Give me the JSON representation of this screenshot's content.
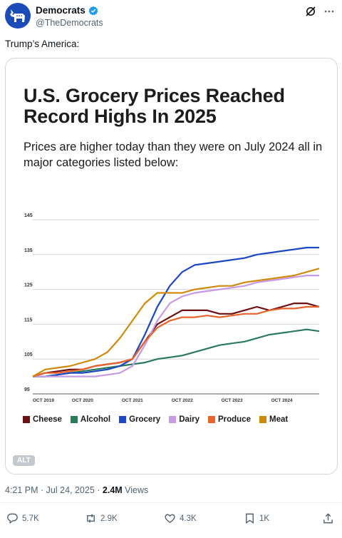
{
  "post": {
    "display_name": "Democrats",
    "handle": "@TheDemocrats",
    "text": "Trump’s America:",
    "timestamp": "4:21 PM · Jul 24, 2025 · ",
    "views_count": "2.4M",
    "views_label": " Views",
    "alt_label": "ALT"
  },
  "actions": {
    "replies": "5.7K",
    "reposts": "2.9K",
    "likes": "4.3K",
    "bookmarks": "1K"
  },
  "icons": [
    "donkey-logo-icon",
    "verified-badge-icon",
    "grok-icon",
    "more-icon",
    "reply-icon",
    "repost-icon",
    "like-icon",
    "bookmark-icon",
    "share-icon"
  ],
  "colors": {
    "brand": "#1a4bb8",
    "verified": "#1d9bf0",
    "muted": "#536471"
  },
  "chart_data": {
    "type": "line",
    "title": "U.S. Grocery Prices Reached Record Highs In 2025",
    "subtitle": "Prices are higher today than they were on July 2024 all in major categories listed below:",
    "x_ticks": [
      "OCT 2019",
      "OCT 2020",
      "OCT 2021",
      "OCT 2022",
      "OCT 2023",
      "OCT 2024"
    ],
    "y_ticks": [
      95,
      105,
      115,
      125,
      135,
      145
    ],
    "ylim": [
      95,
      145
    ],
    "xlim": [
      2019.75,
      2025.5
    ],
    "grid": true,
    "legend": "bottom",
    "x": [
      2019.75,
      2020.0,
      2020.25,
      2020.5,
      2020.75,
      2021.0,
      2021.25,
      2021.5,
      2021.75,
      2022.0,
      2022.25,
      2022.5,
      2022.75,
      2023.0,
      2023.25,
      2023.5,
      2023.75,
      2024.0,
      2024.25,
      2024.5,
      2024.75,
      2025.0,
      2025.25,
      2025.5
    ],
    "series": [
      {
        "name": "Cheese",
        "color": "#6b0f12",
        "values": [
          100,
          101,
          101.5,
          102,
          102,
          103,
          103.5,
          104,
          105,
          110,
          115,
          117,
          119,
          119,
          119,
          118,
          118,
          119,
          120,
          119,
          120,
          121,
          121,
          120
        ]
      },
      {
        "name": "Alcohol",
        "color": "#2a7a5c",
        "values": [
          100,
          100,
          100.5,
          101,
          101.5,
          102,
          102.5,
          103,
          103.5,
          104,
          105,
          105.5,
          106,
          107,
          108,
          109,
          109.5,
          110,
          111,
          112,
          112.5,
          113,
          113.5,
          113
        ]
      },
      {
        "name": "Grocery",
        "color": "#1b48c4",
        "values": [
          100,
          100,
          100.5,
          101,
          101,
          101.5,
          102,
          103,
          105,
          112,
          120,
          126,
          130,
          132,
          132.5,
          133,
          133.5,
          134,
          135,
          135.5,
          136,
          136.5,
          137,
          137
        ]
      },
      {
        "name": "Dairy",
        "color": "#c79ae8",
        "values": [
          100,
          100,
          100,
          100,
          100,
          100,
          100.5,
          101,
          103,
          109,
          116,
          121,
          123,
          124,
          124.5,
          125,
          125.5,
          126,
          127,
          127.5,
          128,
          128.5,
          129,
          129
        ]
      },
      {
        "name": "Produce",
        "color": "#e8642a",
        "values": [
          100,
          101,
          101,
          101.5,
          102,
          103,
          103.5,
          104,
          105,
          110,
          114,
          116,
          117,
          117,
          117.5,
          117,
          117.5,
          118,
          118,
          119,
          119.5,
          119.5,
          120,
          120
        ]
      },
      {
        "name": "Meat",
        "color": "#d08a0a",
        "values": [
          100,
          102,
          102.5,
          103,
          104,
          105,
          107,
          111,
          116,
          121,
          124,
          124,
          124,
          125,
          125.5,
          126,
          126,
          127,
          127.5,
          128,
          128.5,
          129,
          130,
          131
        ]
      }
    ]
  }
}
